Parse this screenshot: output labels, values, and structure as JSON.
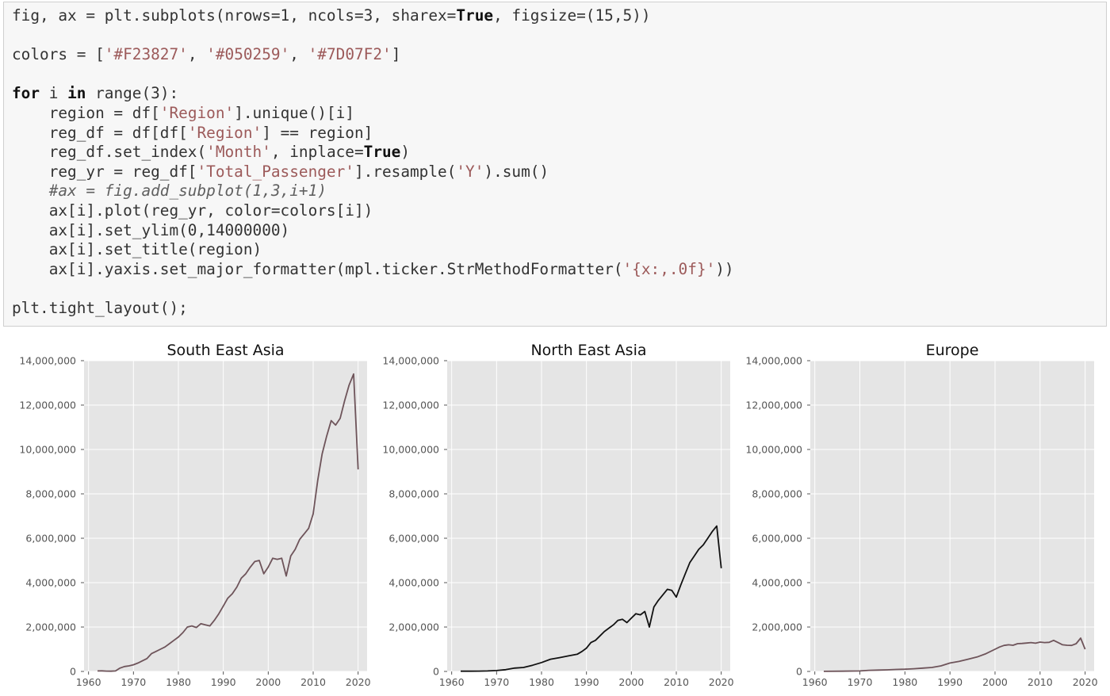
{
  "code": {
    "lines": [
      "fig, ax = plt.subplots(nrows=1, ncols=3, sharex=True, figsize=(15,5))",
      "",
      "colors = ['#F23827', '#050259', '#7D07F2']",
      "",
      "for i in range(3):",
      "    region = df['Region'].unique()[i]",
      "    reg_df = df[df['Region'] == region]",
      "    reg_df.set_index('Month', inplace=True)",
      "    reg_yr = reg_df['Total_Passenger'].resample('Y').sum()",
      "    #ax = fig.add_subplot(1,3,i+1)",
      "    ax[i].plot(reg_yr, color=colors[i])",
      "    ax[i].set_ylim(0,14000000)",
      "    ax[i].set_title(region)",
      "    ax[i].yaxis.set_major_formatter(mpl.ticker.StrMethodFormatter('{x:,.0f}'))",
      "",
      "plt.tight_layout();"
    ]
  },
  "chart_data": [
    {
      "type": "line",
      "title": "South East Asia",
      "color": "#6e545a",
      "xlim": [
        1959,
        2022
      ],
      "ylim": [
        0,
        14000000
      ],
      "xticks": [
        1960,
        1970,
        1980,
        1990,
        2000,
        2010,
        2020
      ],
      "yticks": [
        0,
        2000000,
        4000000,
        6000000,
        8000000,
        10000000,
        12000000,
        14000000
      ],
      "ytick_labels": [
        "0",
        "2,000,000",
        "4,000,000",
        "6,000,000",
        "8,000,000",
        "10,000,000",
        "12,000,000",
        "14,000,000"
      ],
      "grid": true,
      "x": [
        1962,
        1963,
        1964,
        1965,
        1966,
        1967,
        1968,
        1969,
        1970,
        1971,
        1972,
        1973,
        1974,
        1975,
        1976,
        1977,
        1978,
        1979,
        1980,
        1981,
        1982,
        1983,
        1984,
        1985,
        1986,
        1987,
        1988,
        1989,
        1990,
        1991,
        1992,
        1993,
        1994,
        1995,
        1996,
        1997,
        1998,
        1999,
        2000,
        2001,
        2002,
        2003,
        2004,
        2005,
        2006,
        2007,
        2008,
        2009,
        2010,
        2011,
        2012,
        2013,
        2014,
        2015,
        2016,
        2017,
        2018,
        2019,
        2020
      ],
      "values": [
        20000,
        25000,
        15000,
        10000,
        20000,
        150000,
        220000,
        250000,
        300000,
        380000,
        480000,
        580000,
        800000,
        900000,
        1000000,
        1100000,
        1250000,
        1400000,
        1550000,
        1750000,
        2000000,
        2050000,
        1980000,
        2150000,
        2100000,
        2050000,
        2300000,
        2600000,
        2950000,
        3300000,
        3500000,
        3800000,
        4200000,
        4400000,
        4700000,
        4950000,
        5000000,
        4400000,
        4700000,
        5100000,
        5050000,
        5100000,
        4300000,
        5200000,
        5500000,
        5950000,
        6200000,
        6450000,
        7100000,
        8600000,
        9800000,
        10600000,
        11300000,
        11100000,
        11400000,
        12200000,
        12900000,
        13400000,
        9100000
      ]
    },
    {
      "type": "line",
      "title": "North East Asia",
      "color": "#111111",
      "xlim": [
        1959,
        2022
      ],
      "ylim": [
        0,
        14000000
      ],
      "xticks": [
        1960,
        1970,
        1980,
        1990,
        2000,
        2010,
        2020
      ],
      "yticks": [
        0,
        2000000,
        4000000,
        6000000,
        8000000,
        10000000,
        12000000,
        14000000
      ],
      "ytick_labels": [
        "0",
        "2,000,000",
        "4,000,000",
        "6,000,000",
        "8,000,000",
        "10,000,000",
        "12,000,000",
        "14,000,000"
      ],
      "grid": true,
      "x": [
        1962,
        1964,
        1966,
        1968,
        1970,
        1972,
        1974,
        1976,
        1978,
        1980,
        1982,
        1984,
        1986,
        1988,
        1989,
        1990,
        1991,
        1992,
        1993,
        1994,
        1995,
        1996,
        1997,
        1998,
        1999,
        2000,
        2001,
        2002,
        2003,
        2004,
        2005,
        2006,
        2007,
        2008,
        2009,
        2010,
        2011,
        2012,
        2013,
        2014,
        2015,
        2016,
        2017,
        2018,
        2019,
        2020
      ],
      "values": [
        10000,
        12000,
        15000,
        20000,
        40000,
        80000,
        150000,
        180000,
        280000,
        400000,
        550000,
        620000,
        700000,
        780000,
        900000,
        1050000,
        1300000,
        1400000,
        1600000,
        1800000,
        1950000,
        2100000,
        2300000,
        2350000,
        2200000,
        2400000,
        2600000,
        2550000,
        2700000,
        2000000,
        2900000,
        3200000,
        3450000,
        3700000,
        3650000,
        3350000,
        3900000,
        4400000,
        4900000,
        5200000,
        5500000,
        5700000,
        6000000,
        6300000,
        6550000,
        4650000
      ]
    },
    {
      "type": "line",
      "title": "Europe",
      "color": "#6e545a",
      "xlim": [
        1959,
        2022
      ],
      "ylim": [
        0,
        14000000
      ],
      "xticks": [
        1960,
        1970,
        1980,
        1990,
        2000,
        2010,
        2020
      ],
      "yticks": [
        0,
        2000000,
        4000000,
        6000000,
        8000000,
        10000000,
        12000000,
        14000000
      ],
      "ytick_labels": [
        "0",
        "2,000,000",
        "4,000,000",
        "6,000,000",
        "8,000,000",
        "10,000,000",
        "12,000,000",
        "14,000,000"
      ],
      "grid": true,
      "x": [
        1962,
        1966,
        1970,
        1972,
        1974,
        1976,
        1978,
        1980,
        1982,
        1984,
        1986,
        1988,
        1990,
        1992,
        1994,
        1996,
        1998,
        2000,
        2001,
        2002,
        2003,
        2004,
        2005,
        2006,
        2007,
        2008,
        2009,
        2010,
        2011,
        2012,
        2013,
        2014,
        2015,
        2016,
        2017,
        2018,
        2019,
        2020
      ],
      "values": [
        5000,
        10000,
        20000,
        50000,
        60000,
        70000,
        90000,
        100000,
        120000,
        150000,
        180000,
        250000,
        380000,
        450000,
        550000,
        650000,
        800000,
        1000000,
        1100000,
        1170000,
        1200000,
        1180000,
        1250000,
        1260000,
        1280000,
        1300000,
        1270000,
        1320000,
        1300000,
        1310000,
        1400000,
        1300000,
        1200000,
        1180000,
        1170000,
        1250000,
        1500000,
        1000000
      ]
    }
  ]
}
